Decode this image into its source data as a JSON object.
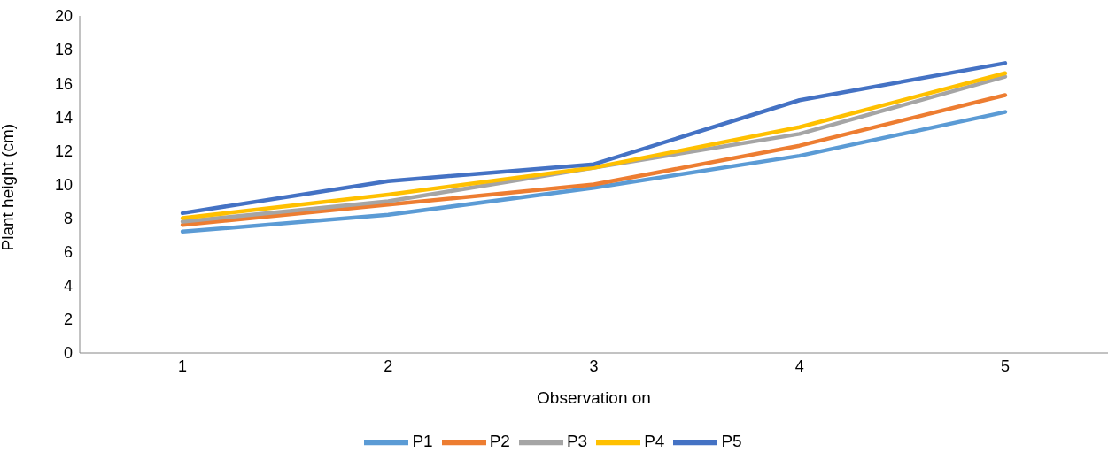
{
  "chart_data": {
    "type": "line",
    "xlabel": "Observation on",
    "ylabel": "Plant height (cm)",
    "categories": [
      "1",
      "2",
      "3",
      "4",
      "5"
    ],
    "series": [
      {
        "name": "P1",
        "color": "#5b9bd5",
        "values": [
          7.2,
          8.2,
          9.8,
          11.7,
          14.3
        ]
      },
      {
        "name": "P2",
        "color": "#ed7d31",
        "values": [
          7.6,
          8.8,
          10.0,
          12.3,
          15.3
        ]
      },
      {
        "name": "P3",
        "color": "#a5a5a5",
        "values": [
          7.8,
          9.0,
          11.0,
          13.0,
          16.4
        ]
      },
      {
        "name": "P4",
        "color": "#ffc000",
        "values": [
          8.0,
          9.4,
          11.0,
          13.4,
          16.6
        ]
      },
      {
        "name": "P5",
        "color": "#4472c4",
        "values": [
          8.3,
          10.2,
          11.2,
          15.0,
          17.2
        ]
      }
    ],
    "ylim": [
      0,
      20
    ],
    "yticks": [
      0,
      2,
      4,
      6,
      8,
      10,
      12,
      14,
      16,
      18,
      20
    ],
    "grid": false,
    "legend": "bottom",
    "marker": "none",
    "line_style": "solid"
  }
}
